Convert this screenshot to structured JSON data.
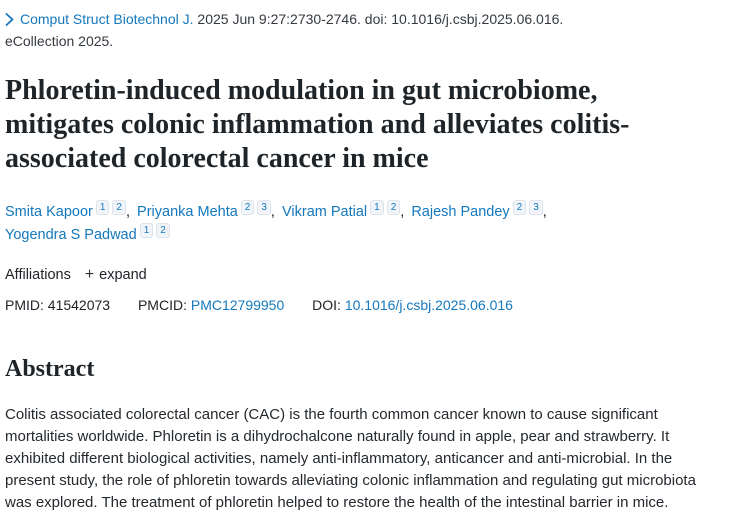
{
  "page": {
    "background": "#ffffff",
    "link_color": "#1478bd",
    "text_color": "#212529"
  },
  "icons": {
    "journal_toggle": "chevron-right-icon",
    "affiliations_expand": "plus-icon"
  },
  "citation": {
    "journal": "Comput Struct Biotechnol J.",
    "details": "2025 Jun 9:27:2730-2746. doi: 10.1016/j.csbj.2025.06.016.",
    "ecollection": "eCollection 2025."
  },
  "title": "Phloretin-induced modulation in gut microbiome, mitigates colonic inflammation and alleviates colitis-associated colorectal cancer in mice",
  "authors": [
    {
      "name": "Smita Kapoor",
      "affiliations": [
        "1",
        "2"
      ]
    },
    {
      "name": "Priyanka Mehta",
      "affiliations": [
        "2",
        "3"
      ]
    },
    {
      "name": "Vikram Patial",
      "affiliations": [
        "1",
        "2"
      ]
    },
    {
      "name": "Rajesh Pandey",
      "affiliations": [
        "2",
        "3"
      ]
    },
    {
      "name": "Yogendra S Padwad",
      "affiliations": [
        "1",
        "2"
      ]
    }
  ],
  "affiliations_row": {
    "label": "Affiliations",
    "expand_icon": "+",
    "expand_label": "expand"
  },
  "identifiers": {
    "pmid_label": "PMID:",
    "pmid": "41542073",
    "pmcid_label": "PMCID:",
    "pmcid": "PMC12799950",
    "doi_label": "DOI:",
    "doi": "10.1016/j.csbj.2025.06.016"
  },
  "abstract": {
    "heading": "Abstract",
    "text": "Colitis associated colorectal cancer (CAC) is the fourth common cancer known to cause significant mortalities worldwide. Phloretin is a dihydrochalcone naturally found in apple, pear and strawberry. It exhibited different biological activities, namely anti-inflammatory, anticancer and anti-microbial. In the present study, the role of phloretin towards alleviating colonic inflammation and regulating gut microbiota was explored. The treatment of phloretin helped to restore the health of the intestinal barrier in mice."
  }
}
